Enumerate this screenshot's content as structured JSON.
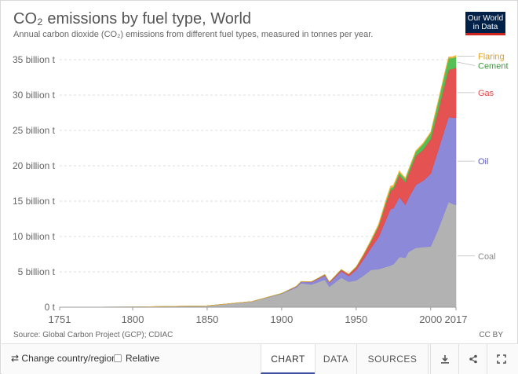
{
  "header": {
    "title": "CO₂ emissions by fuel type, World",
    "subtitle": "Annual carbon dioxide (CO₂) emissions from different fuel types, measured in tonnes per year.",
    "logo_line1": "Our World",
    "logo_line2": "in Data"
  },
  "colors": {
    "coal": "#aeaeae",
    "oil": "#8683d6",
    "gas": "#e44949",
    "cement": "#4cbb4c",
    "flaring": "#f5b236",
    "accent": "#3f51a1"
  },
  "chart_data": {
    "type": "area",
    "stacked": true,
    "x": [
      1751,
      1800,
      1850,
      1880,
      1900,
      1910,
      1913,
      1920,
      1929,
      1932,
      1940,
      1945,
      1950,
      1955,
      1960,
      1965,
      1970,
      1973,
      1975,
      1979,
      1980,
      1983,
      1985,
      1990,
      1995,
      2000,
      2005,
      2010,
      2012,
      2015,
      2017
    ],
    "series": [
      {
        "name": "Coal",
        "values": [
          0.01,
          0.03,
          0.2,
          0.8,
          1.9,
          2.8,
          3.4,
          3.2,
          3.9,
          2.9,
          4.2,
          3.6,
          3.8,
          4.5,
          5.3,
          5.4,
          5.7,
          5.9,
          6.1,
          7.1,
          7.1,
          7.0,
          7.8,
          8.4,
          8.5,
          8.6,
          11.0,
          13.8,
          14.9,
          14.6,
          14.5
        ]
      },
      {
        "name": "Oil",
        "values": [
          0,
          0,
          0,
          0.01,
          0.05,
          0.15,
          0.2,
          0.35,
          0.6,
          0.55,
          0.9,
          0.8,
          1.5,
          2.3,
          3.1,
          4.5,
          6.7,
          8.0,
          7.9,
          8.5,
          8.2,
          7.5,
          7.6,
          8.9,
          9.4,
          10.3,
          11.2,
          11.8,
          12.0,
          12.2,
          12.3
        ]
      },
      {
        "name": "Gas",
        "values": [
          0,
          0,
          0,
          0,
          0.01,
          0.02,
          0.03,
          0.05,
          0.1,
          0.1,
          0.2,
          0.25,
          0.35,
          0.6,
          0.9,
          1.5,
          2.3,
          2.6,
          2.7,
          3.1,
          3.1,
          3.2,
          3.4,
          4.1,
          4.4,
          4.9,
          5.6,
          6.4,
          6.7,
          6.9,
          7.1
        ]
      },
      {
        "name": "Cement",
        "values": [
          0,
          0,
          0,
          0,
          0.01,
          0.02,
          0.02,
          0.02,
          0.04,
          0.03,
          0.05,
          0.04,
          0.07,
          0.1,
          0.15,
          0.2,
          0.3,
          0.35,
          0.35,
          0.43,
          0.43,
          0.45,
          0.5,
          0.6,
          0.8,
          0.85,
          1.2,
          1.5,
          1.6,
          1.55,
          1.5
        ]
      },
      {
        "name": "Flaring",
        "values": [
          0,
          0,
          0,
          0,
          0,
          0,
          0,
          0,
          0,
          0,
          0,
          0,
          0.02,
          0.04,
          0.09,
          0.14,
          0.2,
          0.25,
          0.2,
          0.18,
          0.16,
          0.13,
          0.1,
          0.12,
          0.13,
          0.14,
          0.16,
          0.18,
          0.19,
          0.2,
          0.2
        ]
      }
    ],
    "xlim": [
      1751,
      2017
    ],
    "ylim": [
      0,
      35
    ],
    "x_ticks": [
      1751,
      1800,
      1850,
      1900,
      1950,
      2000,
      2017
    ],
    "y_ticks": [
      0,
      5,
      10,
      15,
      20,
      25,
      30,
      35
    ],
    "y_tick_labels": [
      "0 t",
      "5 billion t",
      "10 billion t",
      "15 billion t",
      "20 billion t",
      "25 billion t",
      "30 billion t",
      "35 billion t"
    ],
    "grid": "horizontal-dashed",
    "legend": "right-inline"
  },
  "footer": {
    "source": "Source: Global Carbon Project (GCP); CDIAC",
    "license": "CC BY",
    "change_country": "Change country/region",
    "relative": "Relative",
    "tab_chart": "CHART",
    "tab_data": "DATA",
    "tab_sources": "SOURCES"
  },
  "icons": {
    "change": "swap-arrows-icon",
    "download": "download-icon",
    "share": "share-icon",
    "fullscreen": "expand-icon"
  }
}
